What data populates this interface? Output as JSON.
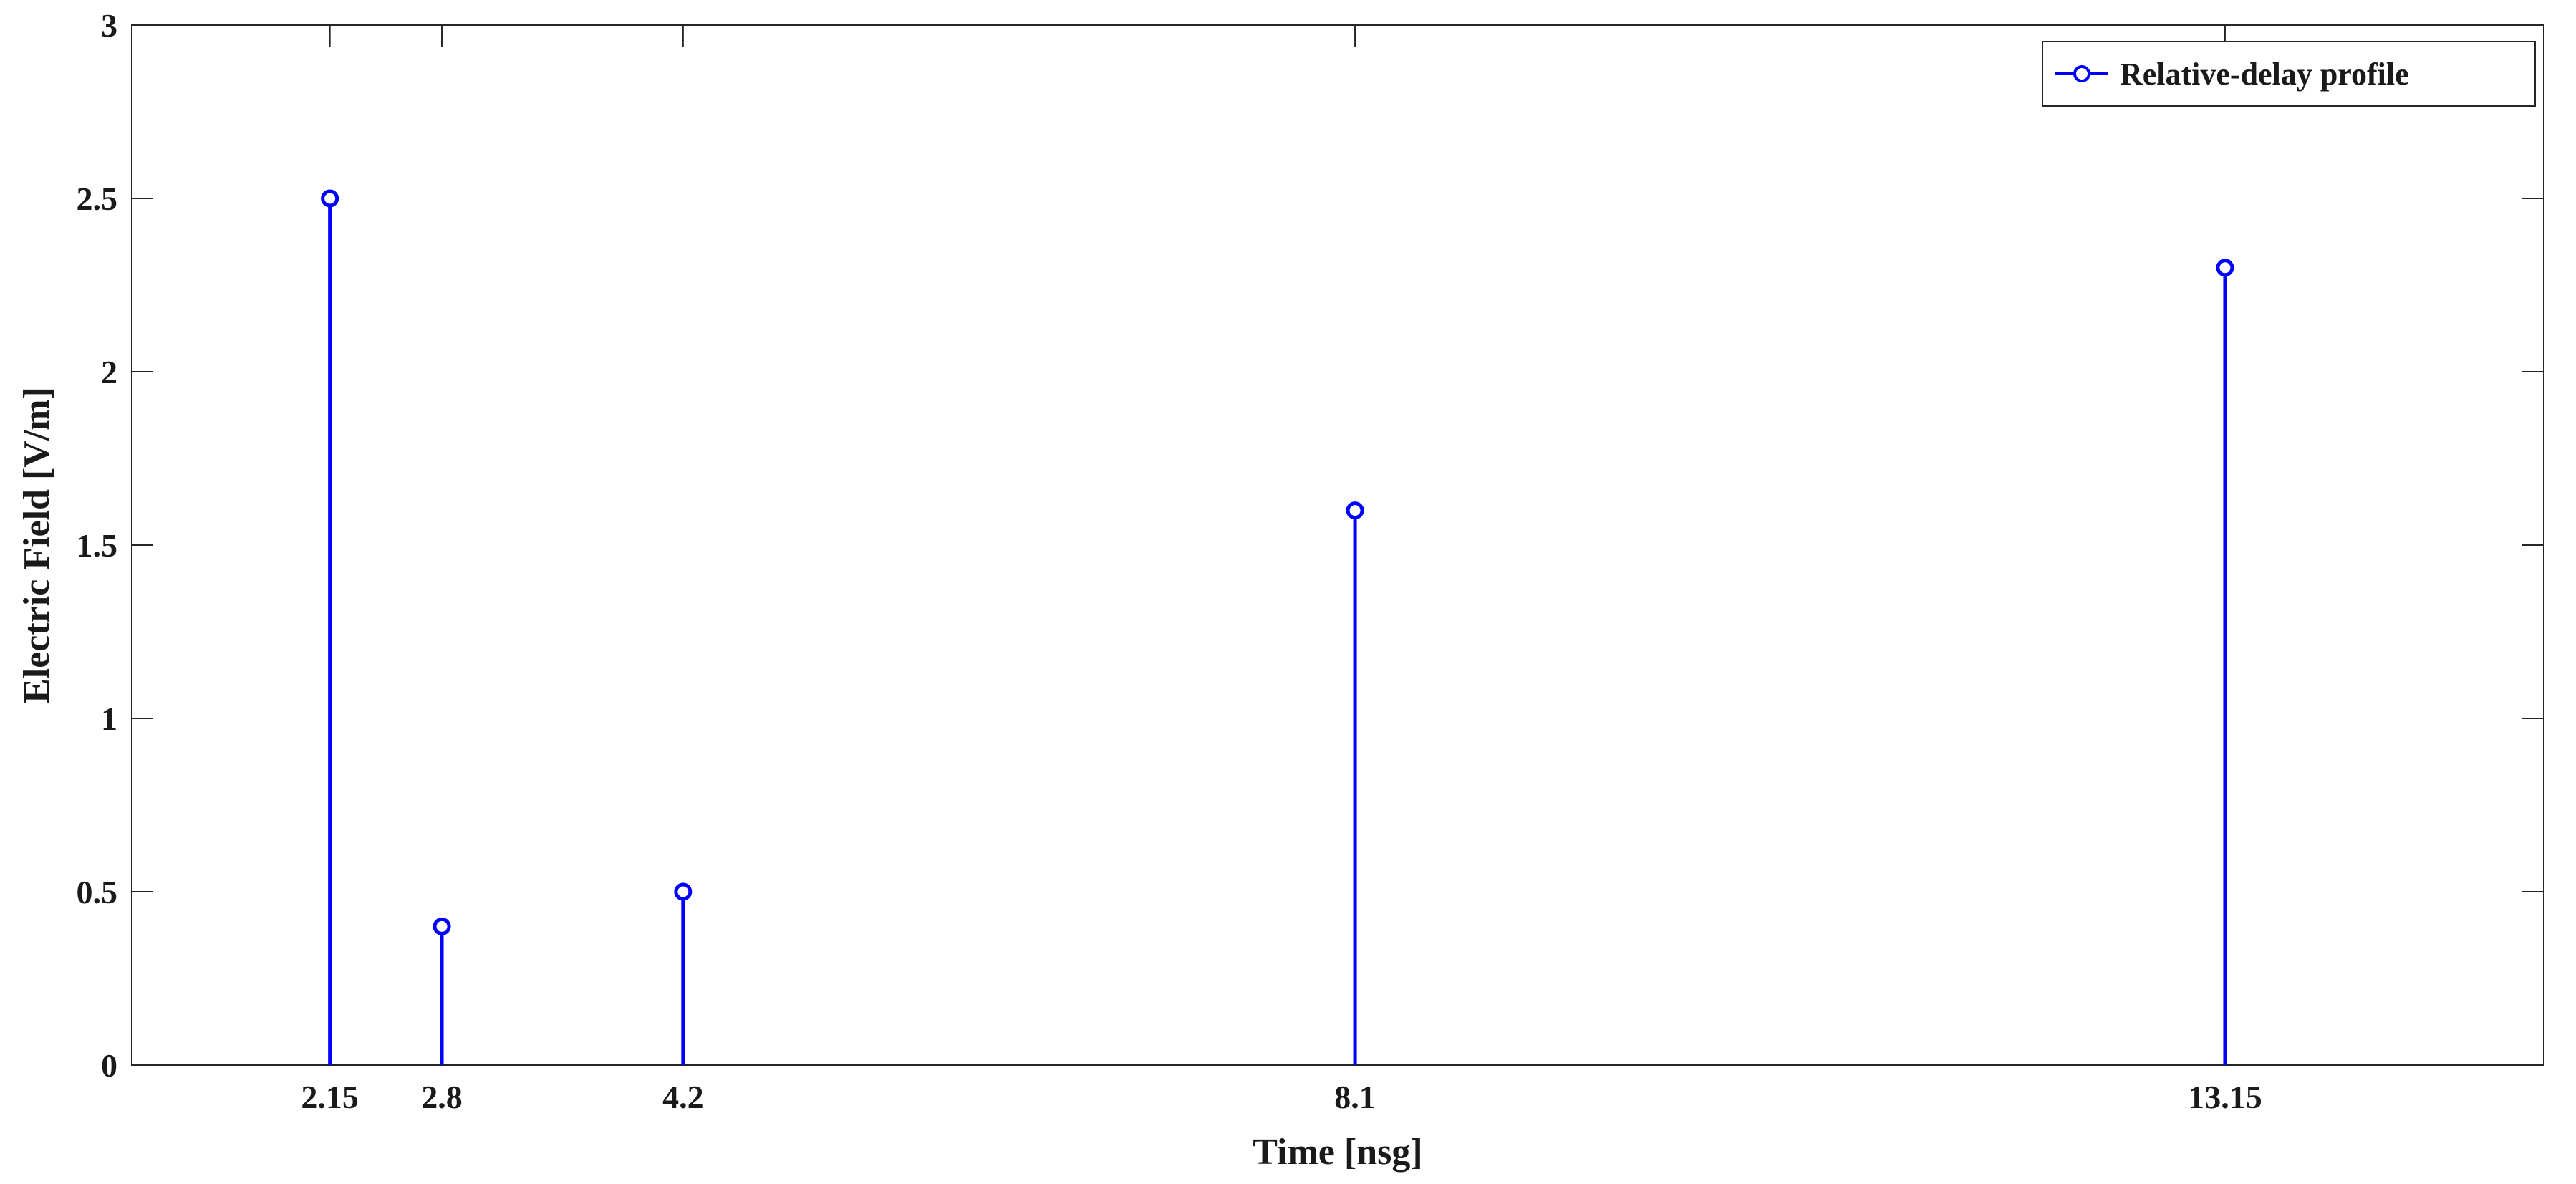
{
  "chart_data": {
    "type": "stem",
    "xlabel": "Time [nsg]",
    "ylabel": "Electric Field [V/m]",
    "xlim": [
      1.0,
      15.0
    ],
    "ylim": [
      0,
      3
    ],
    "xticks": [
      2.15,
      2.8,
      4.2,
      8.1,
      13.15
    ],
    "xtick_labels": [
      "2.15",
      "2.8",
      "4.2",
      "8.1",
      "13.15"
    ],
    "yticks": [
      0,
      0.5,
      1,
      1.5,
      2,
      2.5,
      3
    ],
    "ytick_labels": [
      "0",
      "0.5",
      "1",
      "1.5",
      "2",
      "2.5",
      "3"
    ],
    "grid": false,
    "legend_position": "top-right",
    "series": [
      {
        "name": "Relative-delay profile",
        "color": "#0000ff",
        "marker": "circle",
        "x": [
          2.15,
          2.8,
          4.2,
          8.1,
          13.15
        ],
        "y": [
          2.5,
          0.4,
          0.5,
          1.6,
          2.3
        ]
      }
    ]
  }
}
